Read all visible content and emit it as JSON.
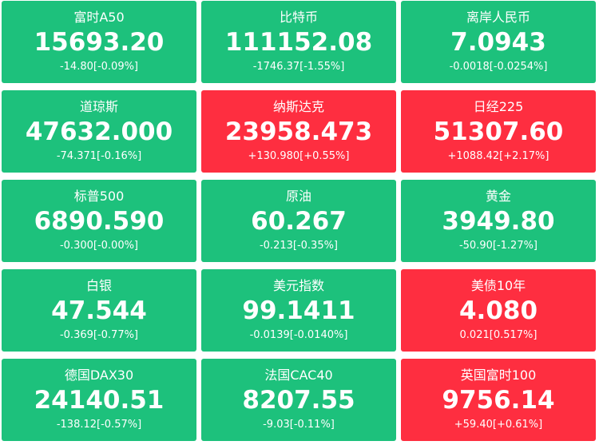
{
  "tiles": [
    {
      "name": "富时A50",
      "price": "15693.20",
      "change": "-14.80[-0.09%]",
      "trend": "down"
    },
    {
      "name": "比特币",
      "price": "111152.08",
      "change": "-1746.37[-1.55%]",
      "trend": "down"
    },
    {
      "name": "离岸人民币",
      "price": "7.0943",
      "change": "-0.0018[-0.0254%]",
      "trend": "down"
    },
    {
      "name": "道琼斯",
      "price": "47632.000",
      "change": "-74.371[-0.16%]",
      "trend": "down"
    },
    {
      "name": "纳斯达克",
      "price": "23958.473",
      "change": "+130.980[+0.55%]",
      "trend": "up"
    },
    {
      "name": "日经225",
      "price": "51307.60",
      "change": "+1088.42[+2.17%]",
      "trend": "up"
    },
    {
      "name": "标普500",
      "price": "6890.590",
      "change": "-0.300[-0.00%]",
      "trend": "down"
    },
    {
      "name": "原油",
      "price": "60.267",
      "change": "-0.213[-0.35%]",
      "trend": "down"
    },
    {
      "name": "黄金",
      "price": "3949.80",
      "change": "-50.90[-1.27%]",
      "trend": "down"
    },
    {
      "name": "白银",
      "price": "47.544",
      "change": "-0.369[-0.77%]",
      "trend": "down"
    },
    {
      "name": "美元指数",
      "price": "99.1411",
      "change": "-0.0139[-0.0140%]",
      "trend": "down"
    },
    {
      "name": "美债10年",
      "price": "4.080",
      "change": "0.021[0.517%]",
      "trend": "up"
    },
    {
      "name": "德国DAX30",
      "price": "24140.51",
      "change": "-138.12[-0.57%]",
      "trend": "down"
    },
    {
      "name": "法国CAC40",
      "price": "8207.55",
      "change": "-9.03[-0.11%]",
      "trend": "down"
    },
    {
      "name": "英国富时100",
      "price": "9756.14",
      "change": "+59.40[+0.61%]",
      "trend": "up"
    }
  ],
  "colors": {
    "up": "#fe2e40",
    "down": "#1dc17c"
  }
}
